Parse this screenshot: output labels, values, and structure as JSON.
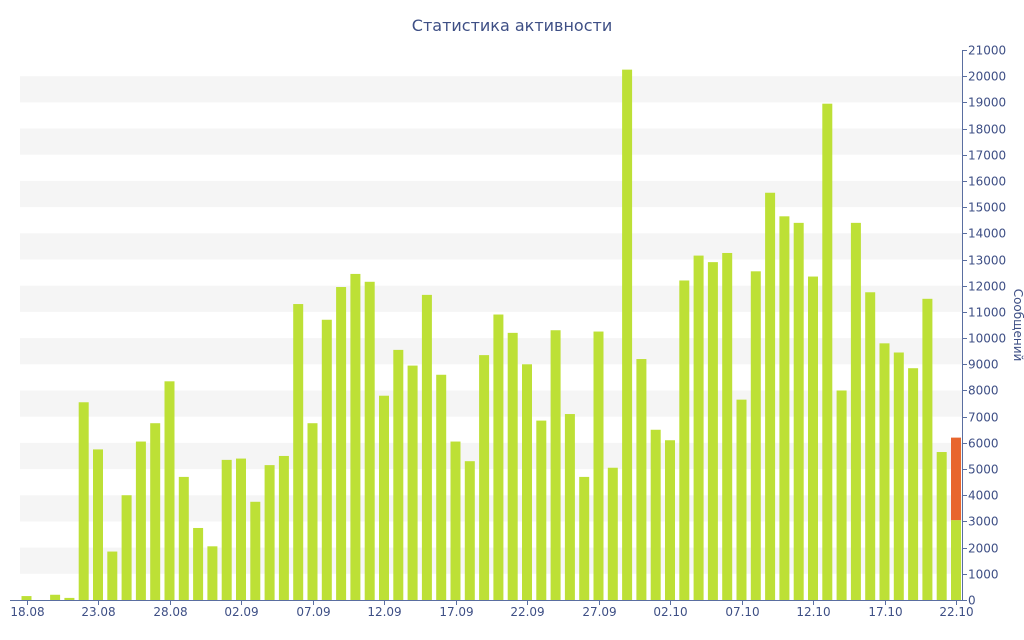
{
  "chart_data": {
    "type": "bar",
    "title": "Статистика активности",
    "ylabel": "Сообщений",
    "xlabel": "",
    "ylim": [
      0,
      21000
    ],
    "yticks": [
      0,
      1000,
      2000,
      3000,
      4000,
      5000,
      6000,
      7000,
      8000,
      9000,
      10000,
      11000,
      12000,
      13000,
      14000,
      15000,
      16000,
      17000,
      18000,
      19000,
      20000,
      21000
    ],
    "y_axis_position": "right",
    "grid": "alternating horizontal bands",
    "legend": "none",
    "x_tick_labels": [
      "18.08",
      "23.08",
      "28.08",
      "02.09",
      "07.09",
      "12.09",
      "17.09",
      "22.09",
      "27.09",
      "02.10",
      "07.10",
      "12.10",
      "17.10",
      "22.10"
    ],
    "categories": [
      "18.08",
      "19.08",
      "20.08",
      "21.08",
      "22.08",
      "23.08",
      "24.08",
      "25.08",
      "26.08",
      "27.08",
      "28.08",
      "29.08",
      "30.08",
      "31.08",
      "01.09",
      "02.09",
      "03.09",
      "04.09",
      "05.09",
      "06.09",
      "07.09",
      "08.09",
      "09.09",
      "10.09",
      "11.09",
      "12.09",
      "13.09",
      "14.09",
      "15.09",
      "16.09",
      "17.09",
      "18.09",
      "19.09",
      "20.09",
      "21.09",
      "22.09",
      "23.09",
      "24.09",
      "25.09",
      "26.09",
      "27.09",
      "28.09",
      "29.09",
      "30.09",
      "01.10",
      "02.10",
      "03.10",
      "04.10",
      "05.10",
      "06.10",
      "07.10",
      "08.10",
      "09.10",
      "10.10",
      "11.10",
      "12.10",
      "13.10",
      "14.10",
      "15.10",
      "16.10",
      "17.10",
      "18.10",
      "19.10",
      "20.10",
      "21.10",
      "22.10"
    ],
    "values": [
      150,
      0,
      200,
      80,
      7550,
      5750,
      1850,
      4000,
      6050,
      6750,
      8350,
      4700,
      2750,
      2050,
      5350,
      5400,
      3750,
      5150,
      5500,
      11300,
      6750,
      10700,
      11950,
      12450,
      12150,
      7800,
      9550,
      8950,
      11650,
      8600,
      6050,
      5300,
      9350,
      10900,
      10200,
      9000,
      6850,
      10300,
      7100,
      4700,
      10250,
      5050,
      20250,
      9200,
      6500,
      6100,
      12200,
      13150,
      12900,
      13250,
      7650,
      12550,
      15550,
      14650,
      14400,
      12350,
      18950,
      8000,
      14400,
      11750,
      9800,
      9450,
      8850,
      11500,
      5650,
      3050
    ],
    "highlight": {
      "index": 65,
      "from": 3050,
      "to": 6200,
      "color": "#e8662e"
    },
    "colors": {
      "bar": "#bde036",
      "highlight": "#e8662e",
      "text": "#3e4f85",
      "axis": "#5a6ea0",
      "band": "#f5f5f5"
    }
  }
}
